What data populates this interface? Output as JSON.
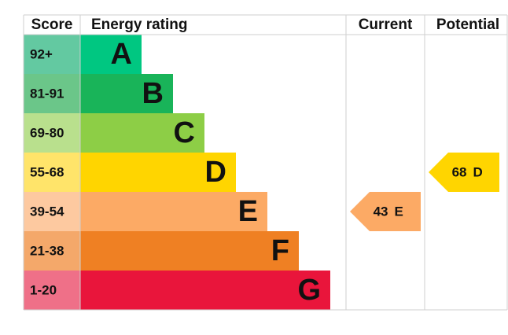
{
  "chart_data": {
    "type": "epc",
    "headers": {
      "score": "Score",
      "rating": "Energy rating",
      "current": "Current",
      "potential": "Potential"
    },
    "bands": [
      {
        "score": "92+",
        "letter": "A",
        "color": "#00c781",
        "score_color": "#63c9a1"
      },
      {
        "score": "81-91",
        "letter": "B",
        "color": "#19b459",
        "score_color": "#6bc689"
      },
      {
        "score": "69-80",
        "letter": "C",
        "color": "#8dce46",
        "score_color": "#b9e08d"
      },
      {
        "score": "55-68",
        "letter": "D",
        "color": "#ffd500",
        "score_color": "#ffe46a"
      },
      {
        "score": "39-54",
        "letter": "E",
        "color": "#fcaa65",
        "score_color": "#fdc9a0"
      },
      {
        "score": "21-38",
        "letter": "F",
        "color": "#ef8023",
        "score_color": "#f4a86a"
      },
      {
        "score": "1-20",
        "letter": "G",
        "color": "#e9153b",
        "score_color": "#ef7088"
      }
    ],
    "current": {
      "value": 43,
      "rating": "E"
    },
    "potential": {
      "value": 68,
      "rating": "D"
    }
  }
}
